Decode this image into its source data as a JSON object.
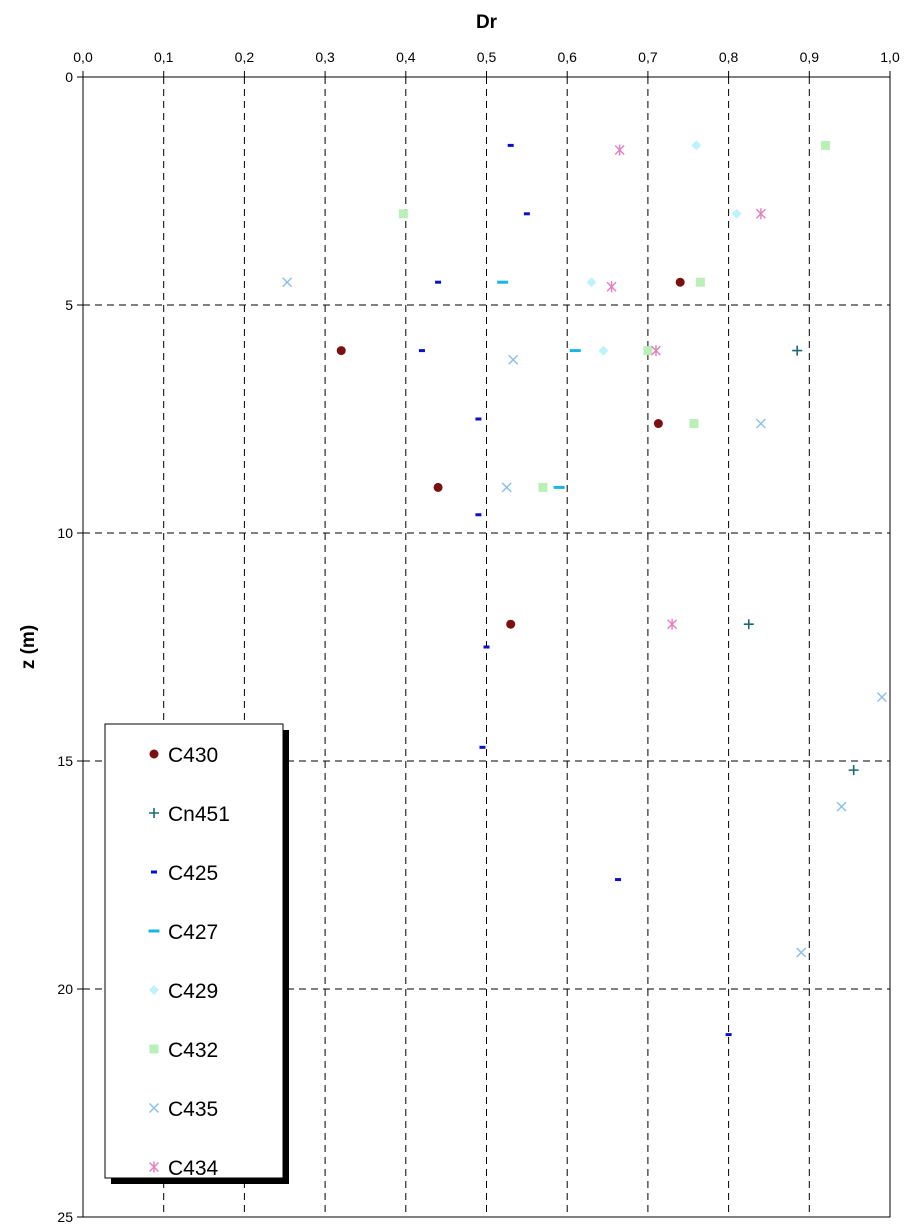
{
  "chart_data": {
    "type": "scatter",
    "xlabel": "Dr",
    "ylabel": "z (m)",
    "xlim": [
      0,
      1
    ],
    "ylim": [
      0,
      25
    ],
    "x_axis_position": "top",
    "y_axis_inverted": true,
    "x_ticks": [
      "0,0",
      "0,1",
      "0,2",
      "0,3",
      "0,4",
      "0,5",
      "0,6",
      "0,7",
      "0,8",
      "0,9",
      "1,0"
    ],
    "y_ticks": [
      "0",
      "5",
      "10",
      "15",
      "20",
      "25"
    ],
    "grid": "dashed",
    "legend_position": "bottom-left",
    "series": [
      {
        "name": "C430",
        "marker": "circle",
        "color": "#7b1010",
        "points": [
          [
            0.74,
            4.5
          ],
          [
            0.32,
            6.0
          ],
          [
            0.713,
            7.6
          ],
          [
            0.44,
            9.0
          ],
          [
            0.53,
            12.0
          ]
        ]
      },
      {
        "name": "Cn451",
        "marker": "plus",
        "color": "#1b6b75",
        "points": [
          [
            0.885,
            6.0
          ],
          [
            0.825,
            12.0
          ],
          [
            0.955,
            15.2
          ]
        ]
      },
      {
        "name": "C425",
        "marker": "dash",
        "color": "#0a12c8",
        "points": [
          [
            0.53,
            1.5
          ],
          [
            0.55,
            3.0
          ],
          [
            0.44,
            4.5
          ],
          [
            0.42,
            6.0
          ],
          [
            0.49,
            7.5
          ],
          [
            0.49,
            9.6
          ],
          [
            0.5,
            12.5
          ],
          [
            0.495,
            14.7
          ],
          [
            0.663,
            17.6
          ],
          [
            0.8,
            21.0
          ]
        ]
      },
      {
        "name": "C427",
        "marker": "bar",
        "color": "#1ab4e8",
        "points": [
          [
            0.52,
            4.5
          ],
          [
            0.61,
            6.0
          ],
          [
            0.59,
            9.0
          ]
        ]
      },
      {
        "name": "C429",
        "marker": "diamond",
        "color": "#bdf3ff",
        "points": [
          [
            0.76,
            1.5
          ],
          [
            0.81,
            3.0
          ],
          [
            0.63,
            4.5
          ],
          [
            0.645,
            6.0
          ]
        ]
      },
      {
        "name": "C432",
        "marker": "square",
        "color": "#b8f0b8",
        "points": [
          [
            0.92,
            1.5
          ],
          [
            0.397,
            3.0
          ],
          [
            0.765,
            4.5
          ],
          [
            0.7,
            6.0
          ],
          [
            0.757,
            7.6
          ],
          [
            0.57,
            9.0
          ]
        ]
      },
      {
        "name": "C435",
        "marker": "x",
        "color": "#86bff0",
        "points": [
          [
            0.253,
            4.5
          ],
          [
            0.533,
            6.2
          ],
          [
            0.84,
            7.6
          ],
          [
            0.525,
            9.0
          ],
          [
            0.99,
            13.6
          ],
          [
            0.94,
            16.0
          ],
          [
            0.89,
            19.2
          ]
        ]
      },
      {
        "name": "C434",
        "marker": "star",
        "color": "#e87dbd",
        "points": [
          [
            0.665,
            1.6
          ],
          [
            0.84,
            3.0
          ],
          [
            0.655,
            4.6
          ],
          [
            0.71,
            6.0
          ],
          [
            0.73,
            12.0
          ]
        ]
      }
    ]
  }
}
